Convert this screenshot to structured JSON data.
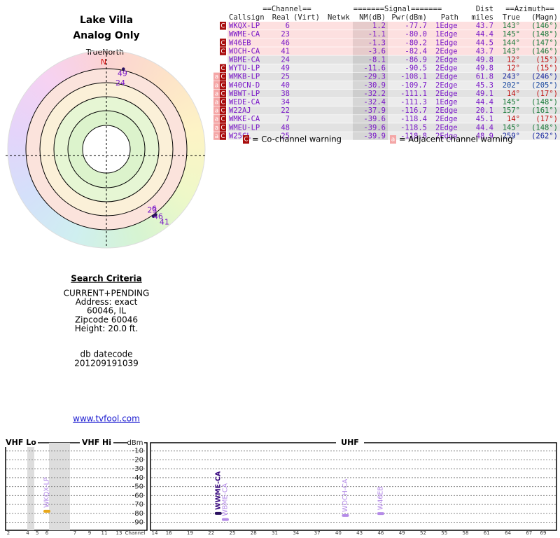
{
  "header": {
    "title": "Lake Villa",
    "subtitle": "Analog Only"
  },
  "polar": {
    "north_label": "TrueNorth",
    "north": "N",
    "markers": [
      {
        "label": "49",
        "azimuth": 12
      },
      {
        "label": "24",
        "azimuth": 12
      },
      {
        "label": "6",
        "azimuth": 143
      },
      {
        "label": "23",
        "azimuth": 145
      },
      {
        "label": "46",
        "azimuth": 144
      },
      {
        "label": "41",
        "azimuth": 143
      }
    ]
  },
  "table": {
    "group_headers": [
      "==Channel==",
      "=======Signal=======",
      "Dist",
      "==Azimuth=="
    ],
    "columns": [
      "Callsign",
      "Real",
      "(Virt)",
      "Netwk",
      "NM(dB)",
      "Pwr(dBm)",
      "Path",
      "miles",
      "True",
      "(Magn)"
    ],
    "rows": [
      {
        "flags": [
          "C"
        ],
        "highlight": true,
        "azimuth_color": "#1a7a3a",
        "cells": [
          "WKQX-LP",
          "6",
          "1.2",
          "-77.7",
          "1Edge",
          "43.7",
          "143°",
          "(146°)"
        ]
      },
      {
        "flags": [],
        "highlight": true,
        "azimuth_color": "#1a7a3a",
        "cells": [
          "WWME-CA",
          "23",
          "-1.1",
          "-80.0",
          "1Edge",
          "44.4",
          "145°",
          "(148°)"
        ]
      },
      {
        "flags": [
          "C"
        ],
        "highlight": true,
        "azimuth_color": "#1a7a3a",
        "cells": [
          "W46EB",
          "46",
          "-1.3",
          "-80.2",
          "1Edge",
          "44.5",
          "144°",
          "(147°)"
        ]
      },
      {
        "flags": [
          "C"
        ],
        "highlight": true,
        "azimuth_color": "#1a7a3a",
        "cells": [
          "WOCH-CA",
          "41",
          "-3.6",
          "-82.4",
          "2Edge",
          "43.7",
          "143°",
          "(146°)"
        ]
      },
      {
        "flags": [],
        "highlight": false,
        "azimuth_color": "#c01010",
        "cells": [
          "WBME-CA",
          "24",
          "-8.1",
          "-86.9",
          "2Edge",
          "49.8",
          "12°",
          "(15°)"
        ]
      },
      {
        "flags": [
          "C"
        ],
        "highlight": false,
        "azimuth_color": "#c01010",
        "cells": [
          "WYTU-LP",
          "49",
          "-11.6",
          "-90.5",
          "2Edge",
          "49.8",
          "12°",
          "(15°)"
        ]
      },
      {
        "flags": [
          "a",
          "C"
        ],
        "highlight": false,
        "azimuth_color": "#1a2aa0",
        "cells": [
          "WMKB-LP",
          "25",
          "-29.3",
          "-108.1",
          "2Edge",
          "61.8",
          "243°",
          "(246°)"
        ]
      },
      {
        "flags": [
          "a",
          "C"
        ],
        "highlight": false,
        "azimuth_color": "#1a4aa0",
        "cells": [
          "W40CN-D",
          "40",
          "-30.9",
          "-109.7",
          "2Edge",
          "45.3",
          "202°",
          "(205°)"
        ]
      },
      {
        "flags": [
          "a",
          "C"
        ],
        "highlight": false,
        "azimuth_color": "#c01010",
        "cells": [
          "WBWT-LP",
          "38",
          "-32.2",
          "-111.1",
          "2Edge",
          "49.1",
          "14°",
          "(17°)"
        ]
      },
      {
        "flags": [
          "a",
          "C"
        ],
        "highlight": false,
        "azimuth_color": "#1a7a3a",
        "cells": [
          "WEDE-CA",
          "34",
          "-32.4",
          "-111.3",
          "1Edge",
          "44.4",
          "145°",
          "(148°)"
        ]
      },
      {
        "flags": [
          "a",
          "C"
        ],
        "highlight": false,
        "azimuth_color": "#1a7a3a",
        "cells": [
          "W22AJ",
          "22",
          "-37.9",
          "-116.7",
          "2Edge",
          "20.1",
          "157°",
          "(161°)"
        ]
      },
      {
        "flags": [
          "a",
          "C"
        ],
        "highlight": false,
        "azimuth_color": "#c01010",
        "cells": [
          "WMKE-CA",
          "7",
          "-39.6",
          "-118.4",
          "2Edge",
          "45.1",
          "14°",
          "(17°)"
        ]
      },
      {
        "flags": [
          "a",
          "C"
        ],
        "highlight": false,
        "azimuth_color": "#1a7a3a",
        "cells": [
          "WMEU-LP",
          "48",
          "-39.6",
          "-118.5",
          "2Edge",
          "44.4",
          "145°",
          "(148°)"
        ]
      },
      {
        "flags": [
          "a",
          "C"
        ],
        "highlight": false,
        "azimuth_color": "#1a2aa0",
        "cells": [
          "W25CL",
          "25",
          "-39.9",
          "-118.8",
          "2Edge",
          "48.9",
          "259°",
          "(262°)"
        ]
      }
    ]
  },
  "legend": [
    {
      "key": "C",
      "text": "= Co-channel warning",
      "color": "#a80c0c",
      "text_color": "#ffffff"
    },
    {
      "key": "a",
      "text": "= Adjacent channel warning",
      "color": "#f4a6a6",
      "text_color": "#ffffff"
    }
  ],
  "search": {
    "title": "Search Criteria",
    "lines": [
      "CURRENT+PENDING",
      "Address: exact",
      "60046, IL",
      "Zipcode 60046",
      "Height: 20.0 ft."
    ],
    "datecode_label": "db datecode",
    "datecode": "201209191039"
  },
  "link": "www.tvfool.com",
  "spectrum": {
    "sections": [
      "VHF Lo",
      "VHF Hi",
      "UHF"
    ],
    "y_label": "dBm",
    "x_label": "Channel",
    "ylim": [
      -99,
      0
    ],
    "yticks": [
      -10,
      -20,
      -30,
      -40,
      -50,
      -60,
      -70,
      -80,
      -90
    ],
    "vhf_lo_ticks": [
      2,
      4,
      5,
      6
    ],
    "vhf_hi_ticks": [
      7,
      9,
      11,
      13
    ],
    "uhf_ticks": [
      14,
      16,
      19,
      22,
      25,
      28,
      31,
      34,
      37,
      40,
      43,
      46,
      49,
      52,
      55,
      58,
      61,
      64,
      67,
      69
    ],
    "stations": [
      {
        "label": "WKQX-LP",
        "channel": 6,
        "power": -77.7,
        "color": "#e8a81c",
        "label_color": "#b58be8"
      },
      {
        "label": "WWME-CA",
        "channel": 23,
        "power": -80.0,
        "color": "#2a1060",
        "label_color": "#3a0a80"
      },
      {
        "label": "WBME-CA",
        "channel": 24,
        "power": -86.9,
        "color": "#b58be8",
        "label_color": "#b58be8"
      },
      {
        "label": "WOCH-CA",
        "channel": 41,
        "power": -82.4,
        "color": "#b58be8",
        "label_color": "#b58be8"
      },
      {
        "label": "W46EB",
        "channel": 46,
        "power": -80.2,
        "color": "#b58be8",
        "label_color": "#b58be8"
      }
    ]
  }
}
